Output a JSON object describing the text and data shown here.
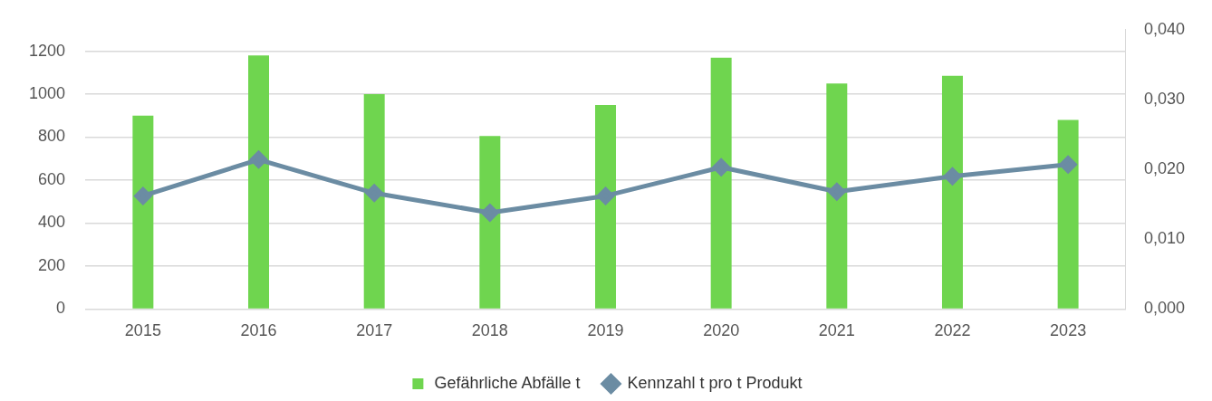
{
  "chart_data": {
    "type": "bar",
    "categories": [
      "2015",
      "2016",
      "2017",
      "2018",
      "2019",
      "2020",
      "2021",
      "2022",
      "2023"
    ],
    "series": [
      {
        "name": "Gefährliche Abfälle t",
        "color": "#6fd54f",
        "values": [
          900,
          1180,
          1000,
          805,
          950,
          1170,
          1050,
          1085,
          880
        ]
      },
      {
        "name": "Kennzahl t pro t Produkt",
        "type": "line",
        "axis": "y2",
        "color": "#6b8ca3",
        "values": [
          0.0162,
          0.0214,
          0.0166,
          0.0138,
          0.0162,
          0.0203,
          0.0168,
          0.019,
          0.0207
        ]
      }
    ],
    "ylim": [
      0,
      1300
    ],
    "yticks": [
      0,
      200,
      400,
      600,
      800,
      1000,
      1200
    ],
    "y2lim": [
      0,
      0.04
    ],
    "y2ticks": [
      {
        "value": 0,
        "label": "0,000"
      },
      {
        "value": 0.01,
        "label": "0,010"
      },
      {
        "value": 0.02,
        "label": "0,020"
      },
      {
        "value": 0.03,
        "label": "0,030"
      },
      {
        "value": 0.04,
        "label": "0,040"
      }
    ],
    "grid": "y",
    "legend": "bottom",
    "marker": "diamond",
    "line_style": "solid"
  }
}
